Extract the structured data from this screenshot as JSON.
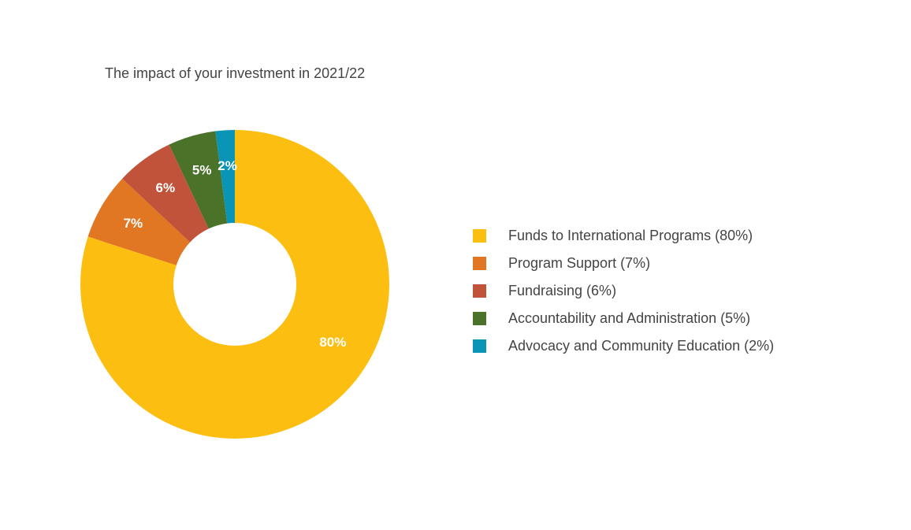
{
  "chart_data": {
    "type": "pie",
    "title": "The impact of your investment in 2021/22",
    "donut": true,
    "legend_position": "right",
    "slices": [
      {
        "label": "Funds to International Programs (80%)",
        "value": 80,
        "data_label": "80%",
        "color": "#FDBE12"
      },
      {
        "label": "Program Support (7%)",
        "value": 7,
        "data_label": "7%",
        "color": "#E17722"
      },
      {
        "label": "Fundraising (6%)",
        "value": 6,
        "data_label": "6%",
        "color": "#C0533A"
      },
      {
        "label": "Accountability and Administration (5%)",
        "value": 5,
        "data_label": "5%",
        "color": "#4A7229"
      },
      {
        "label": "Advocacy and Community Education (2%)",
        "value": 2,
        "data_label": "2%",
        "color": "#0A95B6"
      }
    ]
  }
}
